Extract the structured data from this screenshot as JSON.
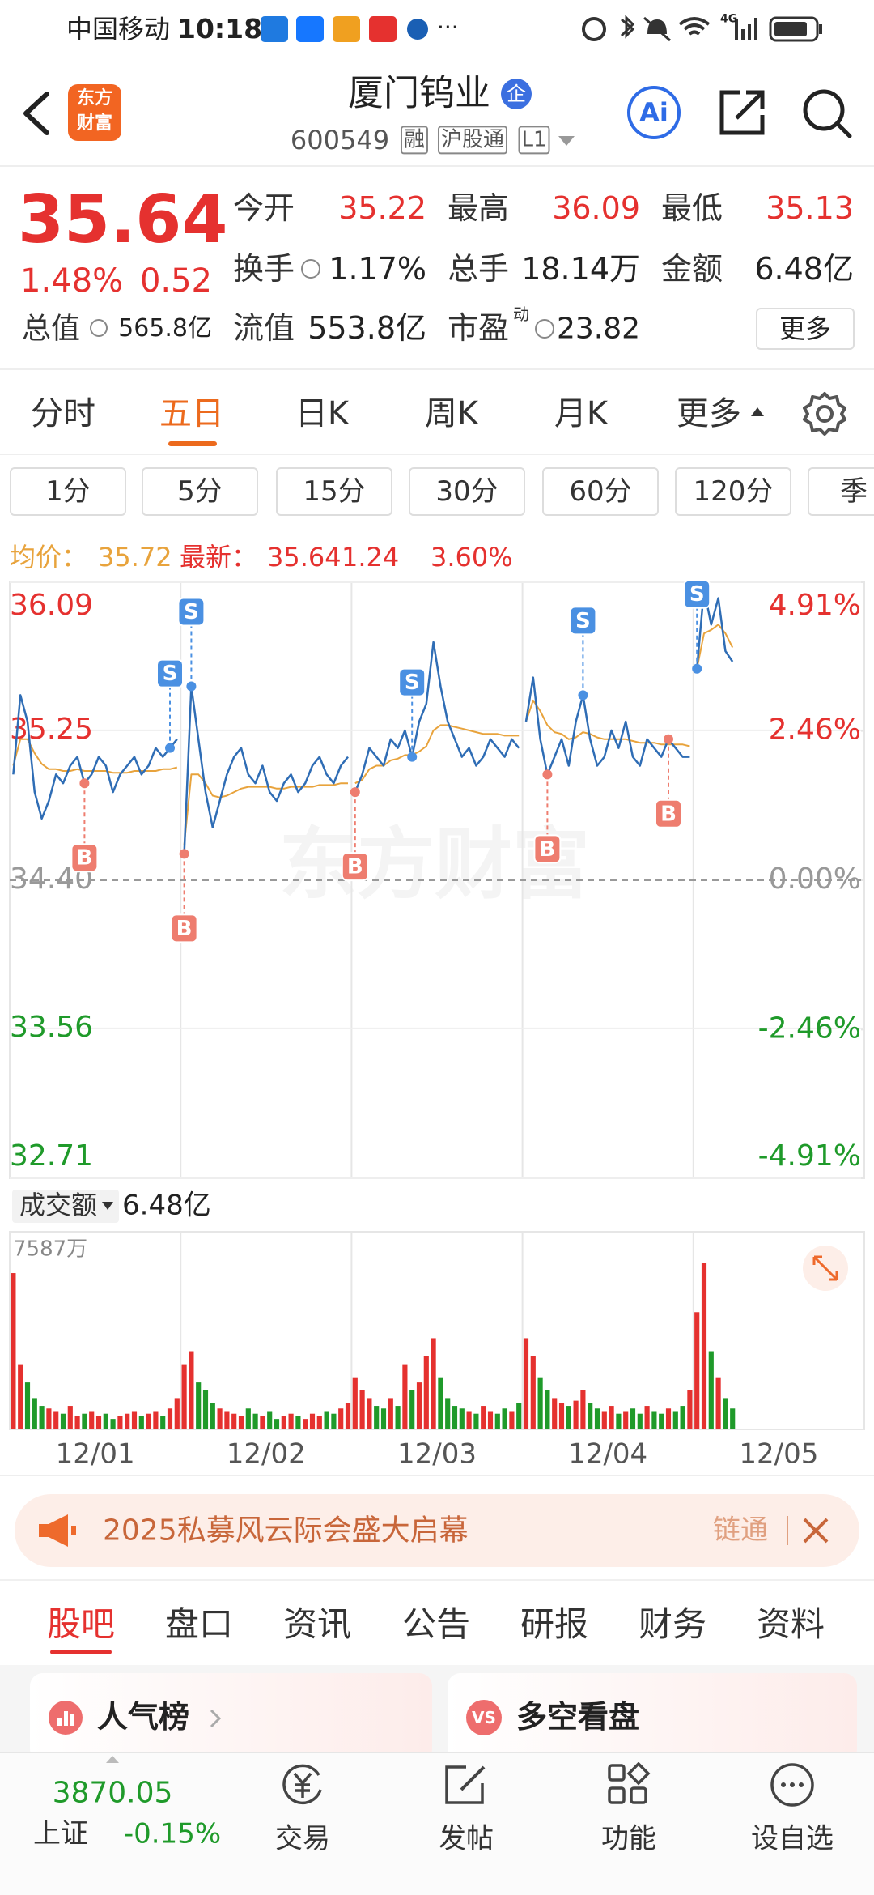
{
  "status_bar": {
    "carrier": "中国移动",
    "time": "10:18",
    "more": "···",
    "network": "4G"
  },
  "header": {
    "logo": [
      "东方",
      "财富"
    ],
    "title": "厦门钨业",
    "badge": "企",
    "code": "600549",
    "tags": [
      "融",
      "沪股通",
      "L1"
    ],
    "ai": "Ai"
  },
  "quote": {
    "price": "35.64",
    "change_pct": "1.48%",
    "change": "0.52",
    "rows": [
      [
        {
          "label": "今开",
          "value": "35.22"
        },
        {
          "label": "最高",
          "value": "36.09"
        },
        {
          "label": "最低",
          "value": "35.13"
        }
      ],
      [
        {
          "label": "换手",
          "value": "1.17%"
        },
        {
          "label": "总手",
          "value": "18.14万"
        },
        {
          "label": "金额",
          "value": "6.48亿"
        }
      ],
      [
        {
          "label": "总值",
          "value": "565.8亿"
        },
        {
          "label": "流值",
          "value": "553.8亿"
        },
        {
          "label": "市盈",
          "sup": "动",
          "value": "23.82"
        }
      ]
    ],
    "more": "更多"
  },
  "period_tabs": [
    "分时",
    "五日",
    "日K",
    "周K",
    "月K",
    "更多"
  ],
  "intervals": [
    "1分",
    "5分",
    "15分",
    "30分",
    "60分",
    "120分",
    "季"
  ],
  "info": {
    "avg_label": "均价：",
    "avg": "35.72",
    "last_label": "最新：",
    "last": "35.64",
    "change": "1.24",
    "change_pct": "3.60%"
  },
  "chart_data": {
    "type": "intraday",
    "watermark": "东方财富",
    "ylim": [
      32.71,
      36.09
    ],
    "yticks": [
      36.09,
      35.25,
      {
        "value": 34.4,
        "label": "34.40"
      },
      33.56,
      32.71
    ],
    "y2lim": [
      -4.91,
      4.91
    ],
    "y2ticks": [
      {
        "value": 4.91,
        "label": "4.91%"
      },
      {
        "value": 2.46,
        "label": "2.46%"
      },
      {
        "value": 0,
        "label": "0.00%"
      },
      {
        "value": -2.46,
        "label": "-2.46%"
      },
      {
        "value": -4.91,
        "label": "-4.91%"
      }
    ],
    "price_color": "#2f6db5",
    "avg_color": "#e8a33c",
    "up_color": "#e5312f",
    "down_color": "#1f9a2a",
    "sell_color": "#4a90e2",
    "buy_color": "#ee7d6f",
    "days": [
      {
        "date": "12/01",
        "price": [
          35.0,
          35.45,
          35.3,
          34.9,
          34.75,
          34.85,
          35.0,
          34.95,
          35.05,
          35.1,
          34.95,
          35.0,
          35.1,
          35.05,
          34.9,
          35.0,
          35.05,
          35.1,
          35.0,
          35.05,
          35.15,
          35.1,
          35.15,
          35.2
        ],
        "avg": [
          35.05,
          35.2,
          35.2,
          35.12,
          35.06,
          35.03,
          35.03,
          35.02,
          35.02,
          35.03,
          35.02,
          35.02,
          35.02,
          35.02,
          35.01,
          35.01,
          35.01,
          35.02,
          35.02,
          35.02,
          35.02,
          35.03,
          35.03,
          35.04
        ],
        "volume": [
          6000,
          2500,
          1800,
          1200,
          900,
          800,
          700,
          600,
          900,
          500,
          600,
          700,
          500,
          600,
          400,
          500,
          600,
          700,
          500,
          600,
          700,
          500,
          800,
          1200
        ]
      },
      {
        "date": "12/02",
        "price": [
          34.55,
          35.5,
          35.2,
          34.9,
          34.7,
          34.85,
          35.0,
          35.1,
          35.15,
          35.0,
          34.95,
          35.05,
          34.9,
          34.85,
          34.95,
          35.0,
          34.9,
          34.95,
          35.05,
          35.1,
          35.0,
          34.95,
          35.05,
          35.1
        ],
        "avg": [
          34.6,
          35.0,
          35.0,
          34.95,
          34.88,
          34.87,
          34.88,
          34.9,
          34.92,
          34.93,
          34.93,
          34.93,
          34.93,
          34.92,
          34.92,
          34.93,
          34.93,
          34.93,
          34.93,
          34.94,
          34.94,
          34.94,
          34.95,
          34.95
        ],
        "volume": [
          2500,
          3000,
          1800,
          1500,
          1000,
          800,
          700,
          600,
          500,
          800,
          600,
          500,
          700,
          400,
          500,
          600,
          500,
          400,
          600,
          500,
          700,
          600,
          800,
          1000
        ]
      },
      {
        "date": "12/03",
        "price": [
          34.9,
          35.0,
          35.15,
          35.1,
          35.05,
          35.2,
          35.15,
          35.25,
          35.1,
          35.3,
          35.4,
          35.75,
          35.5,
          35.3,
          35.2,
          35.1,
          35.15,
          35.05,
          35.1,
          35.2,
          35.15,
          35.1,
          35.2,
          35.15
        ],
        "avg": [
          34.95,
          34.97,
          35.03,
          35.05,
          35.05,
          35.08,
          35.09,
          35.11,
          35.11,
          35.13,
          35.16,
          35.25,
          35.28,
          35.28,
          35.27,
          35.26,
          35.25,
          35.24,
          35.23,
          35.23,
          35.23,
          35.22,
          35.22,
          35.22
        ],
        "volume": [
          2000,
          1500,
          1200,
          900,
          800,
          1200,
          900,
          2500,
          1500,
          1800,
          2800,
          3500,
          2000,
          1200,
          900,
          800,
          700,
          600,
          900,
          700,
          600,
          800,
          700,
          1000
        ]
      },
      {
        "date": "12/04",
        "price": [
          35.3,
          35.55,
          35.2,
          35.0,
          35.1,
          35.2,
          35.05,
          35.3,
          35.45,
          35.2,
          35.05,
          35.1,
          35.25,
          35.15,
          35.3,
          35.1,
          35.05,
          35.2,
          35.15,
          35.1,
          35.2,
          35.15,
          35.1,
          35.1
        ],
        "avg": [
          35.3,
          35.42,
          35.36,
          35.28,
          35.24,
          35.23,
          35.2,
          35.21,
          35.24,
          35.23,
          35.21,
          35.2,
          35.2,
          35.2,
          35.2,
          35.19,
          35.18,
          35.18,
          35.18,
          35.17,
          35.17,
          35.17,
          35.17,
          35.16
        ],
        "volume": [
          3500,
          2800,
          2000,
          1500,
          1200,
          1000,
          900,
          1100,
          1500,
          1000,
          800,
          700,
          900,
          600,
          700,
          800,
          600,
          900,
          700,
          600,
          800,
          700,
          900,
          1500
        ]
      },
      {
        "date": "12/05",
        "price": [
          35.6,
          36.05,
          35.85,
          36.0,
          35.7,
          35.64
        ],
        "avg": [
          35.6,
          35.8,
          35.82,
          35.85,
          35.8,
          35.72
        ],
        "volume": [
          4500,
          6400,
          3000,
          2000,
          1200,
          800
        ]
      }
    ],
    "sell_markers": [
      {
        "label": "S",
        "day": 0,
        "index": 22
      },
      {
        "label": "S",
        "day": 1,
        "index": 1
      },
      {
        "label": "S",
        "day": 2,
        "index": 8
      },
      {
        "label": "S",
        "day": 3,
        "index": 8
      },
      {
        "label": "S",
        "day": 4,
        "index": 0
      }
    ],
    "buy_markers": [
      {
        "label": "B",
        "day": 0,
        "index": 10
      },
      {
        "label": "B",
        "day": 1,
        "index": 0
      },
      {
        "label": "B",
        "day": 2,
        "index": 0
      },
      {
        "label": "B",
        "day": 3,
        "index": 3
      },
      {
        "label": "B",
        "day": 3,
        "index": 20
      }
    ],
    "volume_label": "成交额",
    "volume_total": "6.48亿",
    "volume_ylim": [
      0,
      7587
    ],
    "volume_yticks": [
      {
        "value": 7587,
        "label": "7587万"
      }
    ]
  },
  "banner": {
    "text": "2025私募风云际会盛大启幕",
    "link": "链通"
  },
  "section_tabs": [
    "股吧",
    "盘口",
    "资讯",
    "公告",
    "研报",
    "财务",
    "资料"
  ],
  "cards": [
    {
      "title": "人气榜"
    },
    {
      "title": "多空看盘",
      "icon": "VS"
    }
  ],
  "bottom_nav": {
    "index_value": "3870.05",
    "index_name": "上证",
    "index_change": "-0.15%",
    "items": [
      "交易",
      "发帖",
      "功能",
      "设自选"
    ]
  }
}
